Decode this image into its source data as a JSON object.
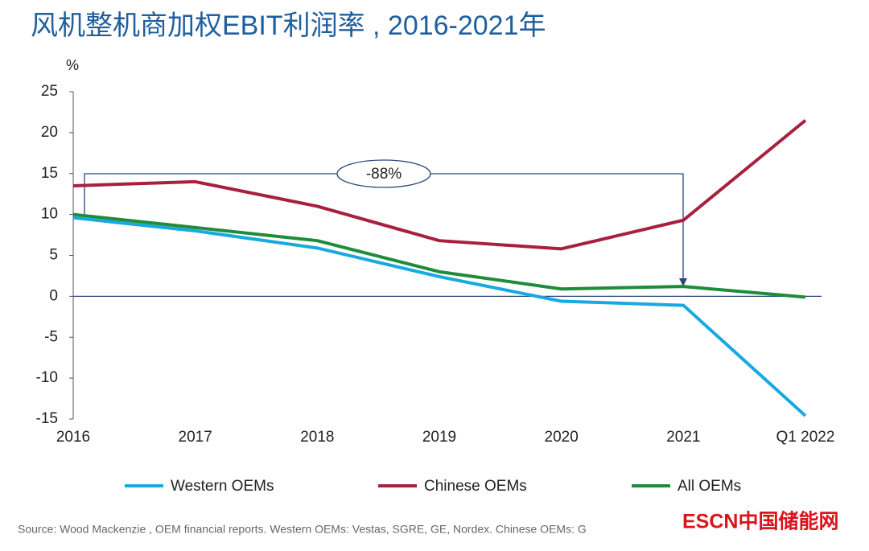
{
  "chart_data": {
    "type": "line",
    "title": "风机整机商加权EBIT利润率 , 2016-2021年",
    "y_label": "%",
    "categories": [
      "2016",
      "2017",
      "2018",
      "2019",
      "2020",
      "2021",
      "Q1 2022"
    ],
    "series": [
      {
        "name": "Western OEMs",
        "color": "#19a9e1",
        "values": [
          9.6,
          8.0,
          5.9,
          2.4,
          -0.6,
          -1.1,
          -14.6
        ]
      },
      {
        "name": "Chinese OEMs",
        "color": "#a8203e",
        "values": [
          13.5,
          14.0,
          11.0,
          6.8,
          5.8,
          9.3,
          21.5
        ]
      },
      {
        "name": "All OEMs",
        "color": "#1e8c3a",
        "values": [
          10.0,
          8.4,
          6.8,
          3.0,
          0.9,
          1.2,
          -0.1
        ]
      }
    ],
    "ylim": [
      -15,
      25
    ],
    "yticks": [
      -15,
      -10,
      -5,
      0,
      5,
      10,
      15,
      20,
      25
    ],
    "grid": false,
    "annotation": "-88%",
    "source": "Source: Wood Mackenzie , OEM financial reports. Western OEMs: Vestas, SGRE, GE, Nordex.  Chinese OEMs: G",
    "watermark": "ESCN中国储能网"
  }
}
